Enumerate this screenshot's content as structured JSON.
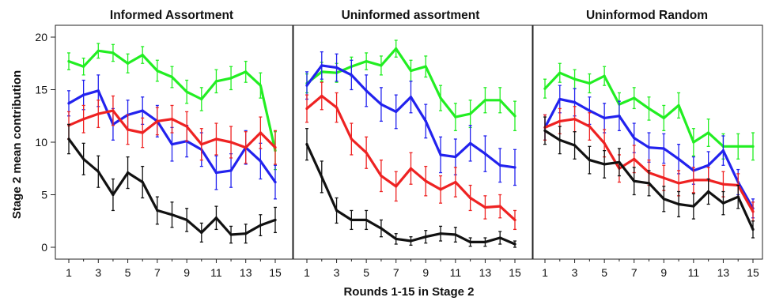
{
  "figure": {
    "ylabel": "Stage 2 mean contribution",
    "xlabel": "Rounds 1-15 in Stage 2"
  },
  "chart_data": [
    {
      "type": "line",
      "title": "Informed Assortment",
      "x": [
        1,
        2,
        3,
        4,
        5,
        6,
        7,
        8,
        9,
        10,
        11,
        12,
        13,
        14,
        15
      ],
      "x_ticks": [
        1,
        3,
        5,
        7,
        9,
        11,
        13,
        15
      ],
      "ylim": [
        -1,
        21
      ],
      "y_ticks": [
        0,
        5,
        10,
        15,
        20
      ],
      "error_bars": true,
      "series": [
        {
          "color": "#22ee22",
          "values": [
            17.7,
            17.2,
            18.7,
            18.5,
            17.5,
            18.3,
            16.8,
            16.2,
            14.8,
            14.1,
            15.8,
            16.1,
            16.7,
            15.4,
            9.2
          ],
          "error": [
            0.8,
            0.8,
            0.7,
            0.8,
            0.9,
            0.8,
            1.0,
            1.0,
            1.1,
            1.1,
            1.1,
            1.1,
            1.0,
            1.2,
            1.8
          ]
        },
        {
          "color": "#2222ee",
          "values": [
            13.7,
            14.5,
            14.9,
            11.7,
            12.6,
            13.0,
            12.0,
            9.8,
            10.1,
            9.3,
            7.1,
            7.3,
            9.5,
            8.2,
            6.2
          ],
          "error": [
            1.2,
            1.4,
            1.5,
            1.5,
            1.4,
            1.3,
            1.5,
            1.6,
            1.5,
            1.6,
            1.6,
            1.6,
            1.6,
            1.7,
            1.6
          ]
        },
        {
          "color": "#ee2222",
          "values": [
            11.6,
            12.2,
            12.7,
            13.0,
            11.2,
            10.9,
            12.0,
            12.2,
            11.5,
            9.8,
            10.3,
            10.0,
            9.5,
            10.9,
            9.5
          ],
          "error": [
            1.3,
            1.3,
            1.3,
            1.4,
            1.4,
            1.4,
            1.3,
            1.3,
            1.4,
            1.5,
            1.5,
            1.5,
            1.5,
            1.5,
            1.6
          ]
        },
        {
          "color": "#111111",
          "values": [
            10.3,
            8.4,
            7.2,
            5.0,
            7.1,
            6.2,
            3.5,
            3.1,
            2.6,
            1.4,
            2.8,
            1.2,
            1.3,
            2.1,
            2.6
          ],
          "error": [
            1.4,
            1.5,
            1.5,
            1.5,
            1.5,
            1.5,
            1.3,
            1.2,
            1.1,
            0.9,
            1.1,
            0.8,
            0.9,
            1.0,
            1.2
          ]
        }
      ]
    },
    {
      "type": "line",
      "title": "Uninformed assortment",
      "x": [
        1,
        2,
        3,
        4,
        5,
        6,
        7,
        8,
        9,
        10,
        11,
        12,
        13,
        14,
        15
      ],
      "x_ticks": [
        1,
        3,
        5,
        7,
        9,
        11,
        13,
        15
      ],
      "ylim": [
        -1,
        21
      ],
      "error_bars": true,
      "series": [
        {
          "color": "#22ee22",
          "values": [
            15.6,
            16.7,
            16.6,
            17.2,
            17.7,
            17.3,
            18.9,
            16.8,
            17.2,
            14.2,
            12.4,
            12.7,
            14.0,
            14.0,
            12.5
          ],
          "error": [
            0.9,
            0.9,
            0.9,
            0.9,
            0.8,
            0.9,
            0.8,
            1.0,
            1.0,
            1.2,
            1.3,
            1.3,
            1.2,
            1.2,
            1.4
          ]
        },
        {
          "color": "#2222ee",
          "values": [
            15.4,
            17.3,
            17.1,
            16.4,
            14.9,
            13.6,
            12.9,
            14.3,
            12.0,
            8.8,
            8.6,
            9.9,
            8.9,
            7.8,
            7.6
          ],
          "error": [
            1.3,
            1.3,
            1.3,
            1.4,
            1.5,
            1.6,
            1.6,
            1.5,
            1.6,
            1.7,
            1.7,
            1.7,
            1.7,
            1.6,
            1.7
          ]
        },
        {
          "color": "#ee2222",
          "values": [
            13.2,
            14.4,
            13.3,
            10.3,
            9.0,
            6.8,
            5.8,
            7.5,
            6.3,
            5.5,
            6.2,
            4.7,
            3.8,
            3.9,
            2.6
          ],
          "error": [
            1.3,
            1.3,
            1.4,
            1.5,
            1.5,
            1.5,
            1.4,
            1.5,
            1.4,
            1.3,
            1.4,
            1.2,
            1.1,
            1.1,
            0.9
          ]
        },
        {
          "color": "#111111",
          "values": [
            9.8,
            6.7,
            3.5,
            2.6,
            2.6,
            1.8,
            0.8,
            0.6,
            1.0,
            1.3,
            1.2,
            0.5,
            0.5,
            0.9,
            0.3
          ],
          "error": [
            1.5,
            1.5,
            1.2,
            0.9,
            0.9,
            0.8,
            0.5,
            0.4,
            0.6,
            0.7,
            0.7,
            0.4,
            0.4,
            0.6,
            0.3
          ]
        }
      ]
    },
    {
      "type": "line",
      "title": "Uninformod Random",
      "x": [
        1,
        2,
        3,
        4,
        5,
        6,
        7,
        8,
        9,
        10,
        11,
        12,
        13,
        14,
        15
      ],
      "x_ticks": [
        1,
        3,
        5,
        7,
        9,
        11,
        13,
        15
      ],
      "ylim": [
        -1,
        21
      ],
      "error_bars": true,
      "series": [
        {
          "color": "#22ee22",
          "values": [
            15.1,
            16.6,
            16.0,
            15.6,
            16.3,
            13.6,
            14.2,
            13.2,
            12.3,
            13.5,
            10.0,
            10.9,
            9.6,
            9.6,
            9.6
          ],
          "error": [
            0.9,
            0.9,
            0.9,
            0.9,
            0.9,
            1.1,
            1.0,
            1.1,
            1.2,
            1.2,
            1.3,
            1.3,
            1.2,
            1.2,
            1.3
          ]
        },
        {
          "color": "#2222ee",
          "values": [
            11.4,
            14.1,
            13.8,
            13.0,
            12.3,
            12.5,
            10.4,
            9.5,
            9.4,
            8.4,
            7.3,
            7.8,
            9.2,
            6.2,
            3.7
          ],
          "error": [
            1.2,
            1.3,
            1.3,
            1.3,
            1.4,
            1.4,
            1.4,
            1.4,
            1.4,
            1.4,
            1.3,
            1.3,
            1.4,
            1.2,
            0.9
          ]
        },
        {
          "color": "#ee2222",
          "values": [
            11.4,
            12.0,
            12.2,
            11.5,
            9.9,
            7.5,
            8.4,
            7.1,
            6.6,
            6.1,
            6.4,
            6.4,
            6.0,
            5.9,
            3.4
          ],
          "error": [
            1.2,
            1.2,
            1.2,
            1.3,
            1.3,
            1.3,
            1.3,
            1.2,
            1.2,
            1.2,
            1.2,
            1.2,
            1.2,
            1.1,
            0.9
          ]
        },
        {
          "color": "#111111",
          "values": [
            11.1,
            10.2,
            9.7,
            8.3,
            7.9,
            8.1,
            6.3,
            6.1,
            4.6,
            4.1,
            3.9,
            5.3,
            4.2,
            4.8,
            1.7
          ],
          "error": [
            1.3,
            1.3,
            1.3,
            1.3,
            1.3,
            1.3,
            1.3,
            1.2,
            1.2,
            1.2,
            1.2,
            1.2,
            1.1,
            1.1,
            0.8
          ]
        }
      ]
    }
  ]
}
